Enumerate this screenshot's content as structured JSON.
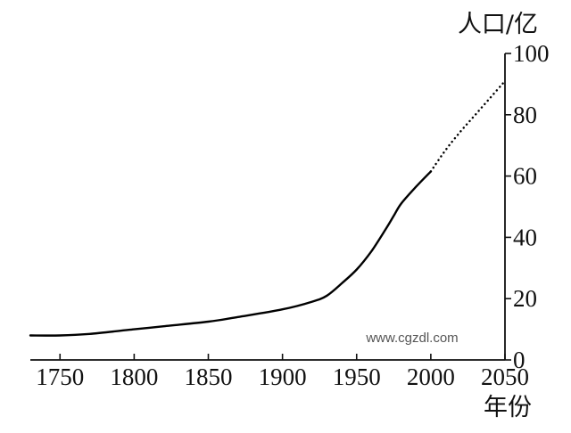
{
  "chart_data": {
    "type": "line",
    "title": "",
    "xlabel": "年份",
    "ylabel": "人口/亿",
    "xlim": [
      1730,
      2050
    ],
    "ylim": [
      0,
      100
    ],
    "x_ticks": [
      1750,
      1800,
      1850,
      1900,
      1950,
      2000,
      2050
    ],
    "x_tick_labels": [
      "1750",
      "1800",
      "1850",
      "1900",
      "1950",
      "2000",
      "2050"
    ],
    "y_ticks": [
      0,
      20,
      40,
      60,
      80,
      100
    ],
    "y_tick_labels": [
      "0",
      "20",
      "40",
      "60",
      "80",
      "100"
    ],
    "y_axis_position": "right",
    "grid": false,
    "legend": "none",
    "series": [
      {
        "style": "solid",
        "color": "#000000",
        "x": [
          1730,
          1750,
          1770,
          1800,
          1820,
          1850,
          1870,
          1900,
          1920,
          1930,
          1940,
          1950,
          1960,
          1970,
          1975,
          1980,
          1990,
          2000
        ],
        "y": [
          8,
          8,
          8.5,
          10,
          11,
          12.5,
          14,
          16.5,
          19,
          21,
          25,
          29.5,
          35.5,
          43,
          47,
          51,
          56.5,
          61.5
        ]
      },
      {
        "style": "dotted",
        "color": "#000000",
        "x": [
          2000,
          2010,
          2020,
          2030,
          2040,
          2050
        ],
        "y": [
          61.5,
          68.5,
          74.5,
          80,
          85.5,
          91
        ]
      }
    ],
    "annotations": [
      "www.cgzdl.com"
    ]
  }
}
